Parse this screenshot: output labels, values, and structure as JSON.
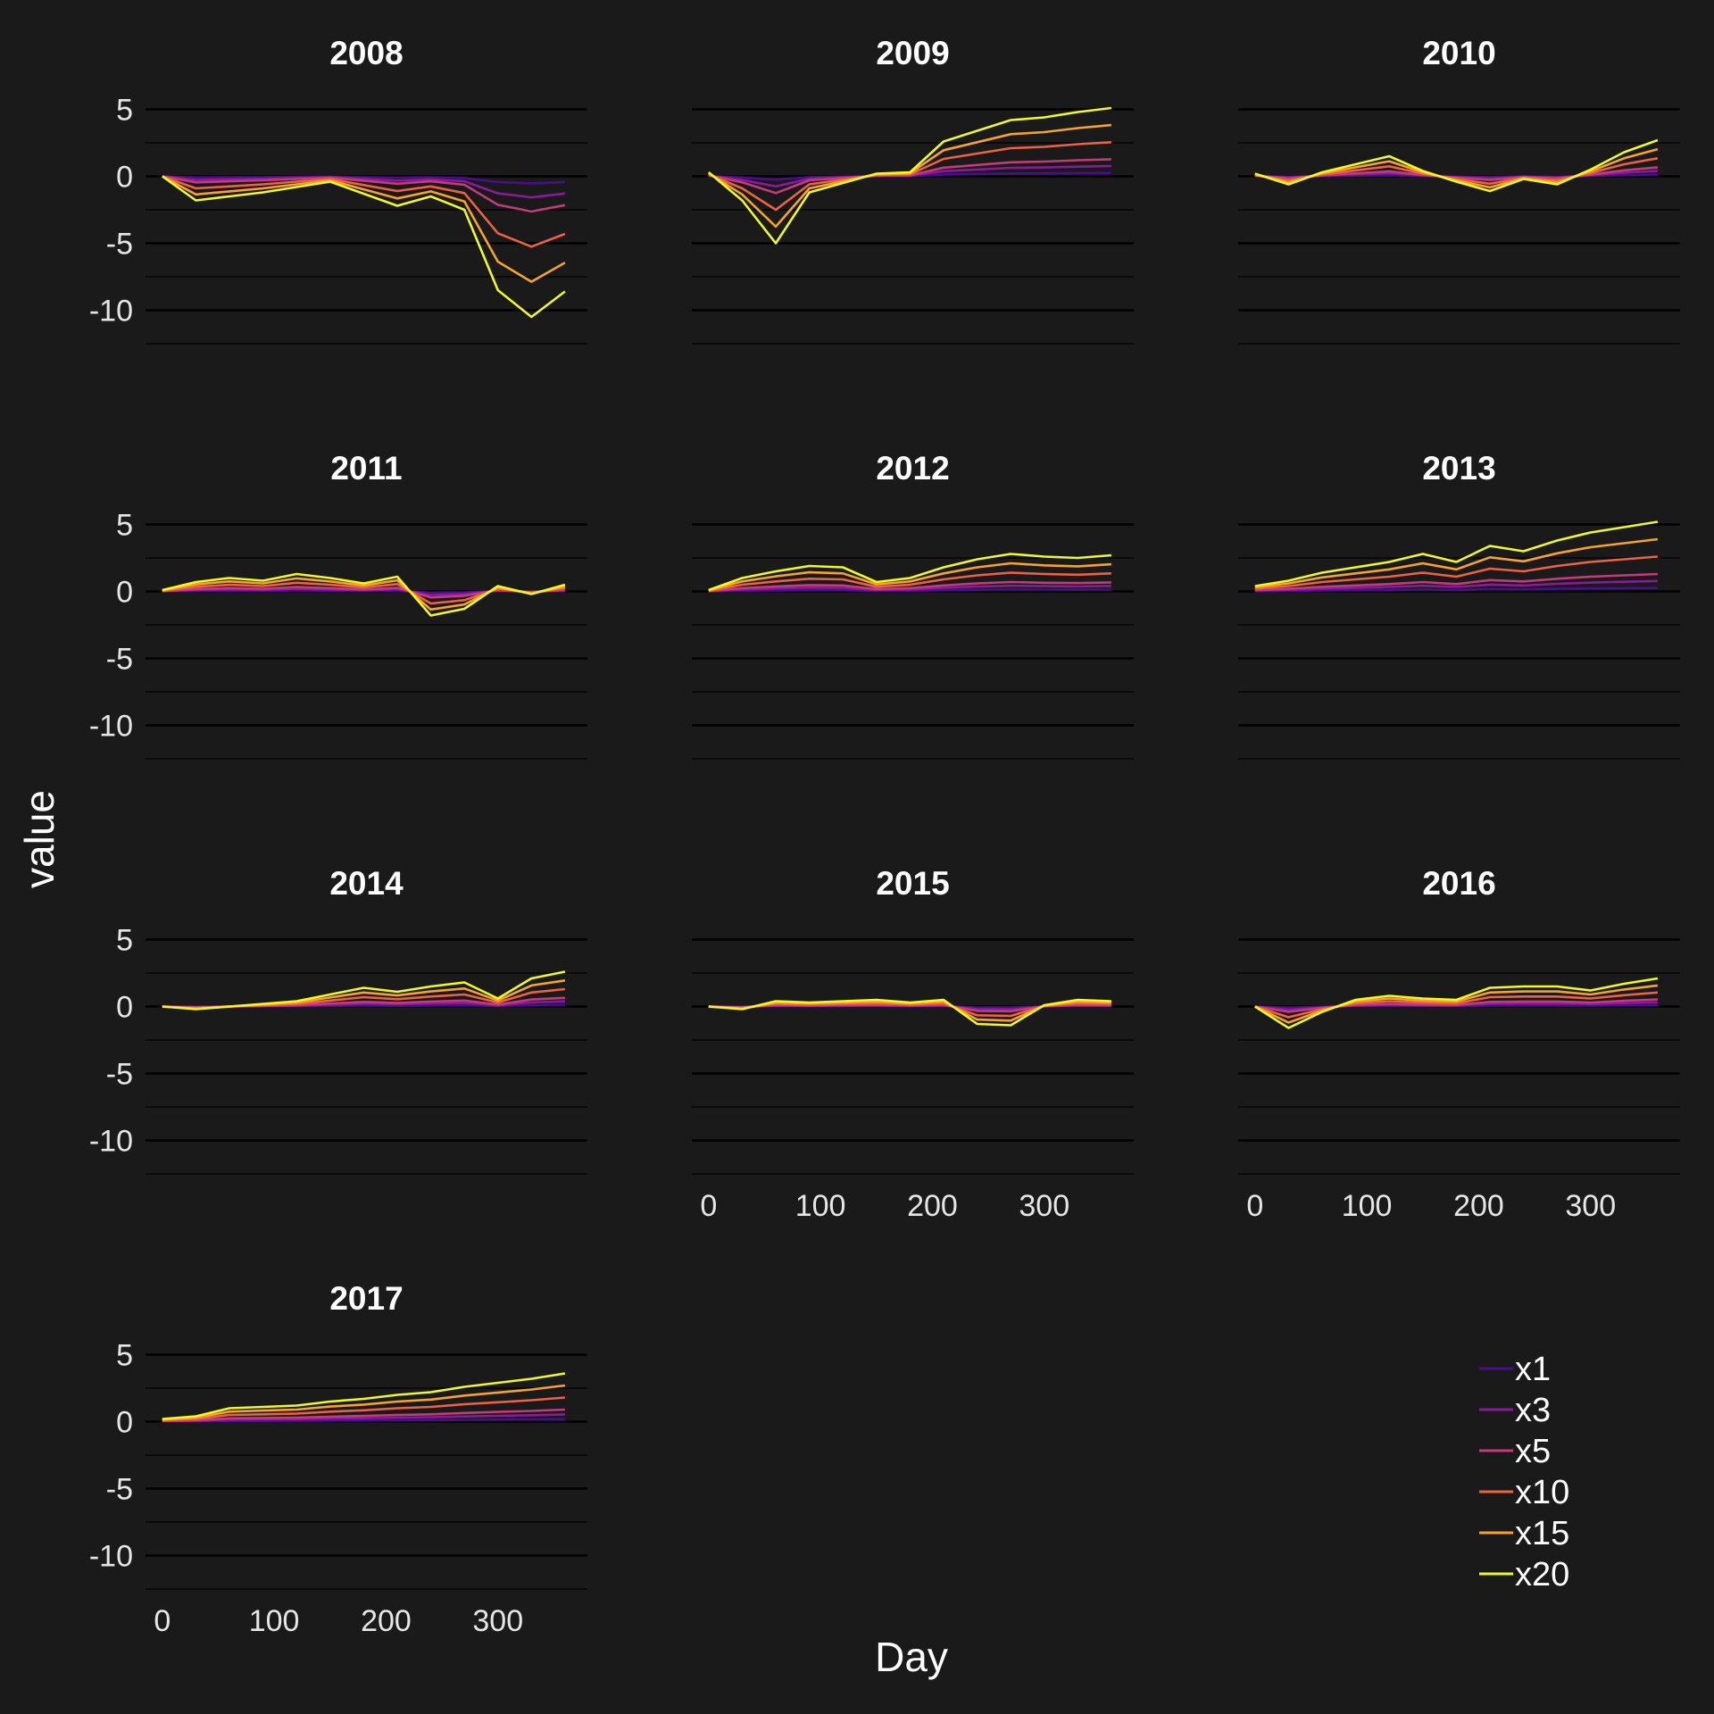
{
  "chart_data": {
    "type": "line",
    "xlabel": "Day",
    "ylabel": "value",
    "xlim": [
      -15,
      380
    ],
    "ylim": [
      -12.5,
      6.5
    ],
    "y_ticks": [
      5,
      0,
      -5,
      -10
    ],
    "x_ticks": [
      0,
      100,
      200,
      300
    ],
    "grid": "horizontal",
    "legend_position": "bottom-right",
    "x_sample_days": [
      0,
      30,
      60,
      90,
      120,
      150,
      180,
      210,
      240,
      270,
      300,
      330,
      360
    ],
    "series": [
      {
        "name": "x1",
        "multiplier": 1,
        "color": "#4b0c8e"
      },
      {
        "name": "x3",
        "multiplier": 3,
        "color": "#8a1a9b"
      },
      {
        "name": "x5",
        "multiplier": 5,
        "color": "#c23b7a"
      },
      {
        "name": "x10",
        "multiplier": 10,
        "color": "#ec6242"
      },
      {
        "name": "x15",
        "multiplier": 15,
        "color": "#f7a32a"
      },
      {
        "name": "x20",
        "multiplier": 20,
        "color": "#f0f921"
      }
    ],
    "panels": [
      {
        "title": "2008",
        "x20_values": [
          0,
          -1.8,
          -1.5,
          -1.2,
          -0.8,
          -0.4,
          -1.3,
          -2.2,
          -1.5,
          -2.5,
          -8.5,
          -10.5,
          -8.6
        ]
      },
      {
        "title": "2009",
        "x20_values": [
          0.3,
          -1.8,
          -5,
          -1.2,
          -0.5,
          0.2,
          0.3,
          2.6,
          3.4,
          4.2,
          4.4,
          4.8,
          5.1
        ]
      },
      {
        "title": "2010",
        "x20_values": [
          0.2,
          -0.6,
          0.3,
          0.9,
          1.5,
          0.4,
          -0.4,
          -1.1,
          -0.2,
          -0.6,
          0.5,
          1.8,
          2.7
        ]
      },
      {
        "title": "2011",
        "x20_values": [
          0.1,
          0.7,
          1,
          0.8,
          1.3,
          1,
          0.6,
          1.1,
          -1.8,
          -1.3,
          0.4,
          -0.2,
          0.5
        ]
      },
      {
        "title": "2012",
        "x20_values": [
          0.1,
          1,
          1.5,
          1.9,
          1.8,
          0.7,
          1,
          1.8,
          2.4,
          2.8,
          2.6,
          2.5,
          2.7
        ]
      },
      {
        "title": "2013",
        "x20_values": [
          0.4,
          0.8,
          1.4,
          1.8,
          2.2,
          2.8,
          2.2,
          3.4,
          3,
          3.8,
          4.4,
          4.8,
          5.2
        ]
      },
      {
        "title": "2014",
        "x20_values": [
          0,
          -0.2,
          0,
          0.2,
          0.4,
          0.9,
          1.4,
          1.1,
          1.5,
          1.8,
          0.6,
          2.1,
          2.6
        ]
      },
      {
        "title": "2015",
        "x20_values": [
          0,
          -0.2,
          0.4,
          0.3,
          0.4,
          0.5,
          0.3,
          0.5,
          -1.3,
          -1.4,
          0.1,
          0.5,
          0.4
        ]
      },
      {
        "title": "2016",
        "x20_values": [
          0,
          -1.6,
          -0.4,
          0.5,
          0.8,
          0.6,
          0.5,
          1.4,
          1.5,
          1.5,
          1.2,
          1.7,
          2.1
        ]
      },
      {
        "title": "2017",
        "x20_values": [
          0.2,
          0.4,
          1,
          1.1,
          1.2,
          1.5,
          1.7,
          2,
          2.2,
          2.6,
          2.9,
          3.2,
          3.6
        ]
      }
    ]
  }
}
